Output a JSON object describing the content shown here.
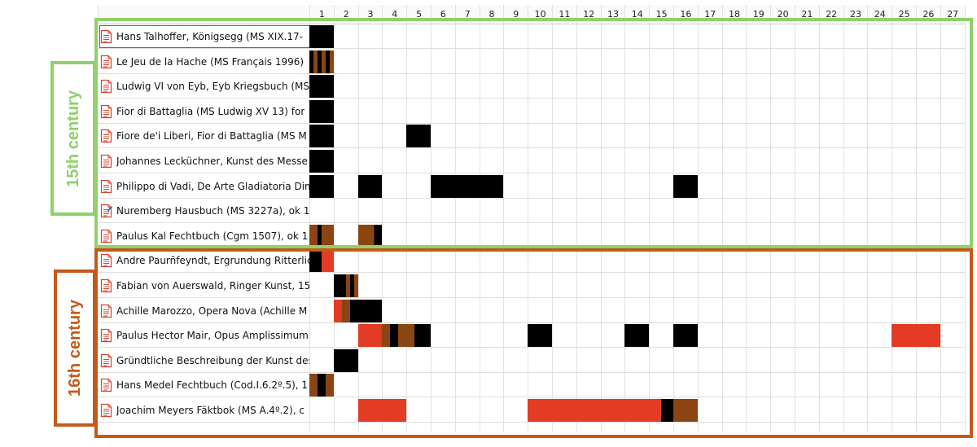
{
  "columns": [
    "1",
    "2",
    "3",
    "4",
    "5",
    "6",
    "7",
    "8",
    "9",
    "10",
    "11",
    "12",
    "13",
    "14",
    "15",
    "16",
    "17",
    "18",
    "19",
    "20",
    "21",
    "22",
    "23",
    "24",
    "25",
    "26",
    "27"
  ],
  "colors": {
    "black": "#000000",
    "brown": "#8b4513",
    "red": "#e33b24",
    "green_frame": "#8fd16a",
    "orange_frame": "#c45a1a",
    "green_text": "#8fd16a",
    "orange_text": "#c45a1a"
  },
  "groups": [
    {
      "label": "15th century",
      "frame_color": "green"
    },
    {
      "label": "16th century",
      "frame_color": "orange"
    }
  ],
  "rows": [
    {
      "label": "Hans Talhoffer, Königsegg (MS XIX.17-",
      "icon": "document-icon",
      "selected": true,
      "marks": [
        {
          "col": 1,
          "span": 1,
          "color": "black"
        }
      ]
    },
    {
      "label": "Le Jeu de la Hache (MS Français 1996)",
      "icon": "document-icon",
      "marks": [
        {
          "col": 1,
          "span": 1,
          "color": "black",
          "stripes": [
            "black",
            "brown",
            "black",
            "brown",
            "black",
            "brown"
          ]
        }
      ]
    },
    {
      "label": "Ludwig VI von Eyb, Eyb Kriegsbuch (MS",
      "icon": "document-icon",
      "marks": [
        {
          "col": 1,
          "span": 1,
          "color": "black"
        }
      ]
    },
    {
      "label": "Fior di Battaglia (MS Ludwig XV 13) for",
      "icon": "document-icon",
      "marks": [
        {
          "col": 1,
          "span": 1,
          "color": "black"
        }
      ]
    },
    {
      "label": "Fiore de'i Liberi, Fior di Battaglia (MS M",
      "icon": "document-icon",
      "marks": [
        {
          "col": 1,
          "span": 1,
          "color": "black"
        },
        {
          "col": 5,
          "span": 1,
          "color": "black"
        }
      ]
    },
    {
      "label": "Johannes Lecküchner, Kunst des Messe",
      "icon": "document-icon",
      "marks": [
        {
          "col": 1,
          "span": 1,
          "color": "black"
        }
      ]
    },
    {
      "label": "Philippo di Vadi, De Arte Gladiatoria Dim",
      "icon": "document-icon",
      "marks": [
        {
          "col": 1,
          "span": 1,
          "color": "black"
        },
        {
          "col": 3,
          "span": 1,
          "color": "black"
        },
        {
          "col": 6,
          "span": 3,
          "color": "black"
        },
        {
          "col": 16,
          "span": 1,
          "color": "black"
        }
      ]
    },
    {
      "label": "Nuremberg Hausbuch (MS 3227a), ok 1",
      "icon": "edit-document-icon",
      "marks": []
    },
    {
      "label": "Paulus Kal Fechtbuch (Cgm 1507), ok 1",
      "icon": "document-icon",
      "marks": [
        {
          "col": 1,
          "span": 1,
          "color": "black",
          "stripes": [
            "brown",
            "brown",
            "black",
            "brown",
            "brown",
            "brown"
          ]
        },
        {
          "col": 3,
          "span": 1,
          "color": "brown",
          "stripes": [
            "brown",
            "brown",
            "brown",
            "brown",
            "black",
            "black"
          ]
        }
      ]
    },
    {
      "label": "Andre Paurñfeyndt, Ergrundung Ritterlic",
      "icon": "document-icon",
      "marks": [
        {
          "col": 1,
          "span": 1,
          "color": "black",
          "stripes": [
            "black",
            "black",
            "black",
            "red",
            "red",
            "red"
          ]
        }
      ]
    },
    {
      "label": "Fabian von Auerswald, Ringer Kunst, 15",
      "icon": "document-icon",
      "marks": [
        {
          "col": 2,
          "span": 1,
          "color": "black",
          "stripes": [
            "black",
            "black",
            "black",
            "brown",
            "black",
            "brown"
          ]
        }
      ]
    },
    {
      "label": "Achille Marozzo, Opera Nova (Achille M",
      "icon": "document-icon",
      "marks": [
        {
          "col": 2,
          "span": 1,
          "color": "red",
          "stripes": [
            "red",
            "red",
            "brown",
            "brown",
            "black",
            "black"
          ]
        },
        {
          "col": 3,
          "span": 1,
          "color": "black"
        }
      ]
    },
    {
      "label": "Paulus Hector Mair, Opus Amplissimum",
      "icon": "document-icon",
      "marks": [
        {
          "col": 3,
          "span": 1,
          "color": "red"
        },
        {
          "col": 4,
          "span": 1,
          "color": "brown",
          "stripes": [
            "brown",
            "brown",
            "black",
            "black",
            "brown",
            "brown"
          ]
        },
        {
          "col": 5,
          "span": 1,
          "color": "brown",
          "stripes": [
            "brown",
            "brown",
            "black",
            "black",
            "black",
            "black"
          ]
        },
        {
          "col": 10,
          "span": 1,
          "color": "black"
        },
        {
          "col": 14,
          "span": 1,
          "color": "black"
        },
        {
          "col": 16,
          "span": 1,
          "color": "black"
        },
        {
          "col": 25,
          "span": 2,
          "color": "red"
        }
      ]
    },
    {
      "label": "Gründtliche Beschreibung der Kunst des",
      "icon": "document-icon",
      "marks": [
        {
          "col": 2,
          "span": 1,
          "color": "black"
        }
      ]
    },
    {
      "label": "Hans Medel Fechtbuch (Cod.I.6.2º.5), 1",
      "icon": "document-icon",
      "marks": [
        {
          "col": 1,
          "span": 1,
          "color": "brown",
          "stripes": [
            "brown",
            "brown",
            "black",
            "black",
            "brown",
            "brown"
          ]
        }
      ]
    },
    {
      "label": "Joachim Meyers Fäktbok (MS A.4º.2), c",
      "icon": "document-icon",
      "marks": [
        {
          "col": 3,
          "span": 2,
          "color": "red"
        },
        {
          "col": 10,
          "span": 5,
          "color": "red"
        },
        {
          "col": 15,
          "span": 1,
          "color": "red",
          "stripes": [
            "red",
            "red",
            "red",
            "black",
            "black",
            "black"
          ]
        },
        {
          "col": 16,
          "span": 1,
          "color": "brown"
        }
      ]
    }
  ]
}
